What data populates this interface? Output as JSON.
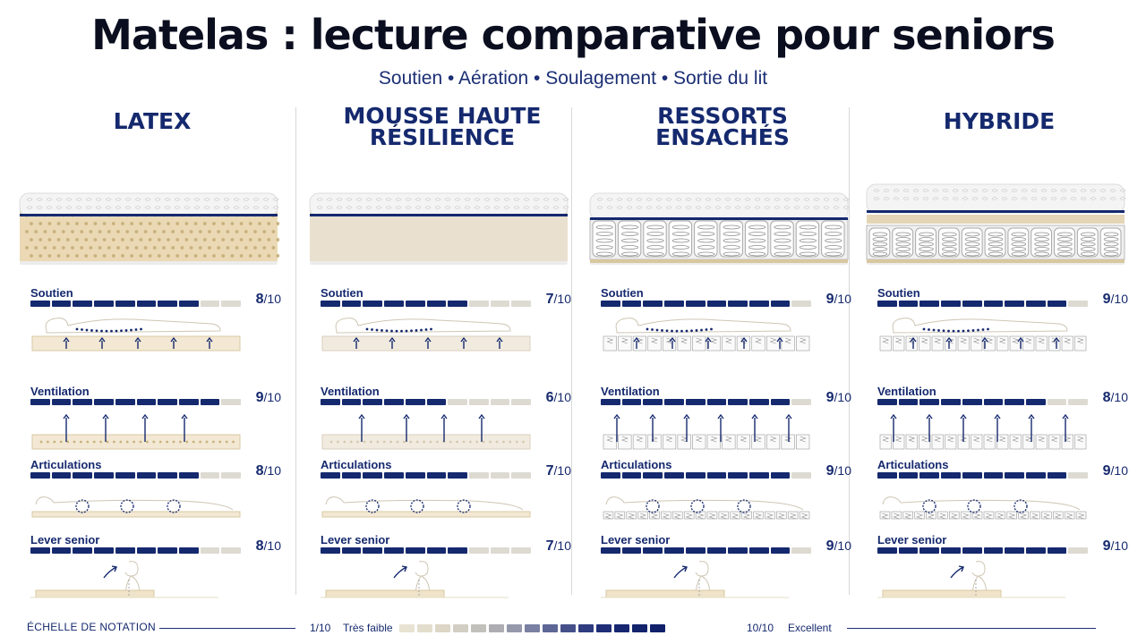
{
  "header": {
    "title": "Matelas : lecture comparative pour seniors",
    "subtitle": "Soutien • Aération • Soulagement • Sortie du lit"
  },
  "colors": {
    "navy": "#15296e",
    "empty": "#dddad2",
    "latex_body": "#ead9b4",
    "foam_body": "#e9e0cf",
    "quilt": "#f4f4f4"
  },
  "columns": [
    {
      "title_lines": [
        "LATEX"
      ],
      "metrics": [
        {
          "label": "Soutien",
          "score": "8",
          "den": "/10",
          "value": 8
        },
        {
          "label": "Ventilation",
          "score": "9",
          "den": "/10",
          "value": 9
        },
        {
          "label": "Articulations",
          "score": "8",
          "den": "/10",
          "value": 8
        },
        {
          "label": "Lever senior",
          "score": "8",
          "den": "/10",
          "value": 8
        }
      ]
    },
    {
      "title_lines": [
        "MOUSSE HAUTE",
        "RÉSILIENCE"
      ],
      "metrics": [
        {
          "label": "Soutien",
          "score": "7",
          "den": "/10",
          "value": 7
        },
        {
          "label": "Ventilation",
          "score": "6",
          "den": "/10",
          "value": 6
        },
        {
          "label": "Articulations",
          "score": "7",
          "den": "/10",
          "value": 7
        },
        {
          "label": "Lever senior",
          "score": "7",
          "den": "/10",
          "value": 7
        }
      ]
    },
    {
      "title_lines": [
        "RESSORTS",
        "ENSACHÉS"
      ],
      "metrics": [
        {
          "label": "Soutien",
          "score": "9",
          "den": "/10",
          "value": 9
        },
        {
          "label": "Ventilation",
          "score": "9",
          "den": "/10",
          "value": 9
        },
        {
          "label": "Articulations",
          "score": "9",
          "den": "/10",
          "value": 9
        },
        {
          "label": "Lever senior",
          "score": "9",
          "den": "/10",
          "value": 9
        }
      ]
    },
    {
      "title_lines": [
        "HYBRIDE"
      ],
      "metrics": [
        {
          "label": "Soutien",
          "score": "9",
          "den": "/10",
          "value": 9
        },
        {
          "label": "Ventilation",
          "score": "8",
          "den": "/10",
          "value": 8
        },
        {
          "label": "Articulations",
          "score": "9",
          "den": "/10",
          "value": 9
        },
        {
          "label": "Lever senior",
          "score": "9",
          "den": "/10",
          "value": 9
        }
      ]
    }
  ],
  "legend": {
    "title": "ÉCHELLE DE NOTATION",
    "min": "1/10",
    "low_label": "Très faible",
    "max": "10/10",
    "high_label": "Excellent"
  }
}
